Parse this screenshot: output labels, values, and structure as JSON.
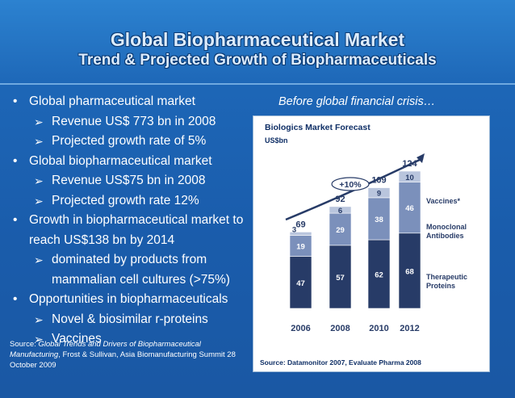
{
  "slide": {
    "title": "Global Biopharmaceutical Market",
    "subtitle": "Trend & Projected Growth of Biopharmaceuticals",
    "caption": "Before global financial crisis…",
    "source_label": "Source: ",
    "source_title": "Global Trends and Drivers of Biopharmaceutical Manufacturing",
    "source_rest": ", Frost & Sullivan, Asia Biomanufacturing Summit 28 October 2009"
  },
  "bullets": [
    {
      "text": "Global pharmaceutical market",
      "subs": [
        "Revenue US$ 773 bn in 2008",
        "Projected growth rate of 5%"
      ]
    },
    {
      "text": "Global biopharmaceutical market",
      "subs": [
        " Revenue US$75 bn in 2008",
        " Projected growth rate 12%"
      ]
    },
    {
      "text": "Growth in biopharmaceutical market to reach US$138 bn by 2014",
      "subs": [
        " dominated by products from mammalian cell cultures (>75%)"
      ]
    },
    {
      "text": "Opportunities in biopharmaceuticals",
      "subs": [
        "Novel & biosimilar r-proteins",
        "Vaccines"
      ]
    }
  ],
  "chart_data": {
    "type": "bar",
    "stacked": true,
    "title": "Biologics Market Forecast",
    "ylabel": "US$bn",
    "categories": [
      "2006",
      "2008",
      "2010",
      "2012"
    ],
    "series": [
      {
        "name": "Therapeutic Proteins",
        "values": [
          47,
          57,
          62,
          68
        ],
        "color": "#273b67"
      },
      {
        "name": "Monoclonal Antibodies",
        "values": [
          19,
          29,
          38,
          46
        ],
        "color": "#7b90bb"
      },
      {
        "name": "Vaccines*",
        "values": [
          3,
          6,
          9,
          10
        ],
        "color": "#b9c5dd"
      }
    ],
    "totals": [
      69,
      92,
      109,
      124
    ],
    "annotation": "+10%",
    "source": "Source: Datamonitor 2007, Evaluate Pharma 2008",
    "ylim": [
      0,
      124
    ]
  }
}
